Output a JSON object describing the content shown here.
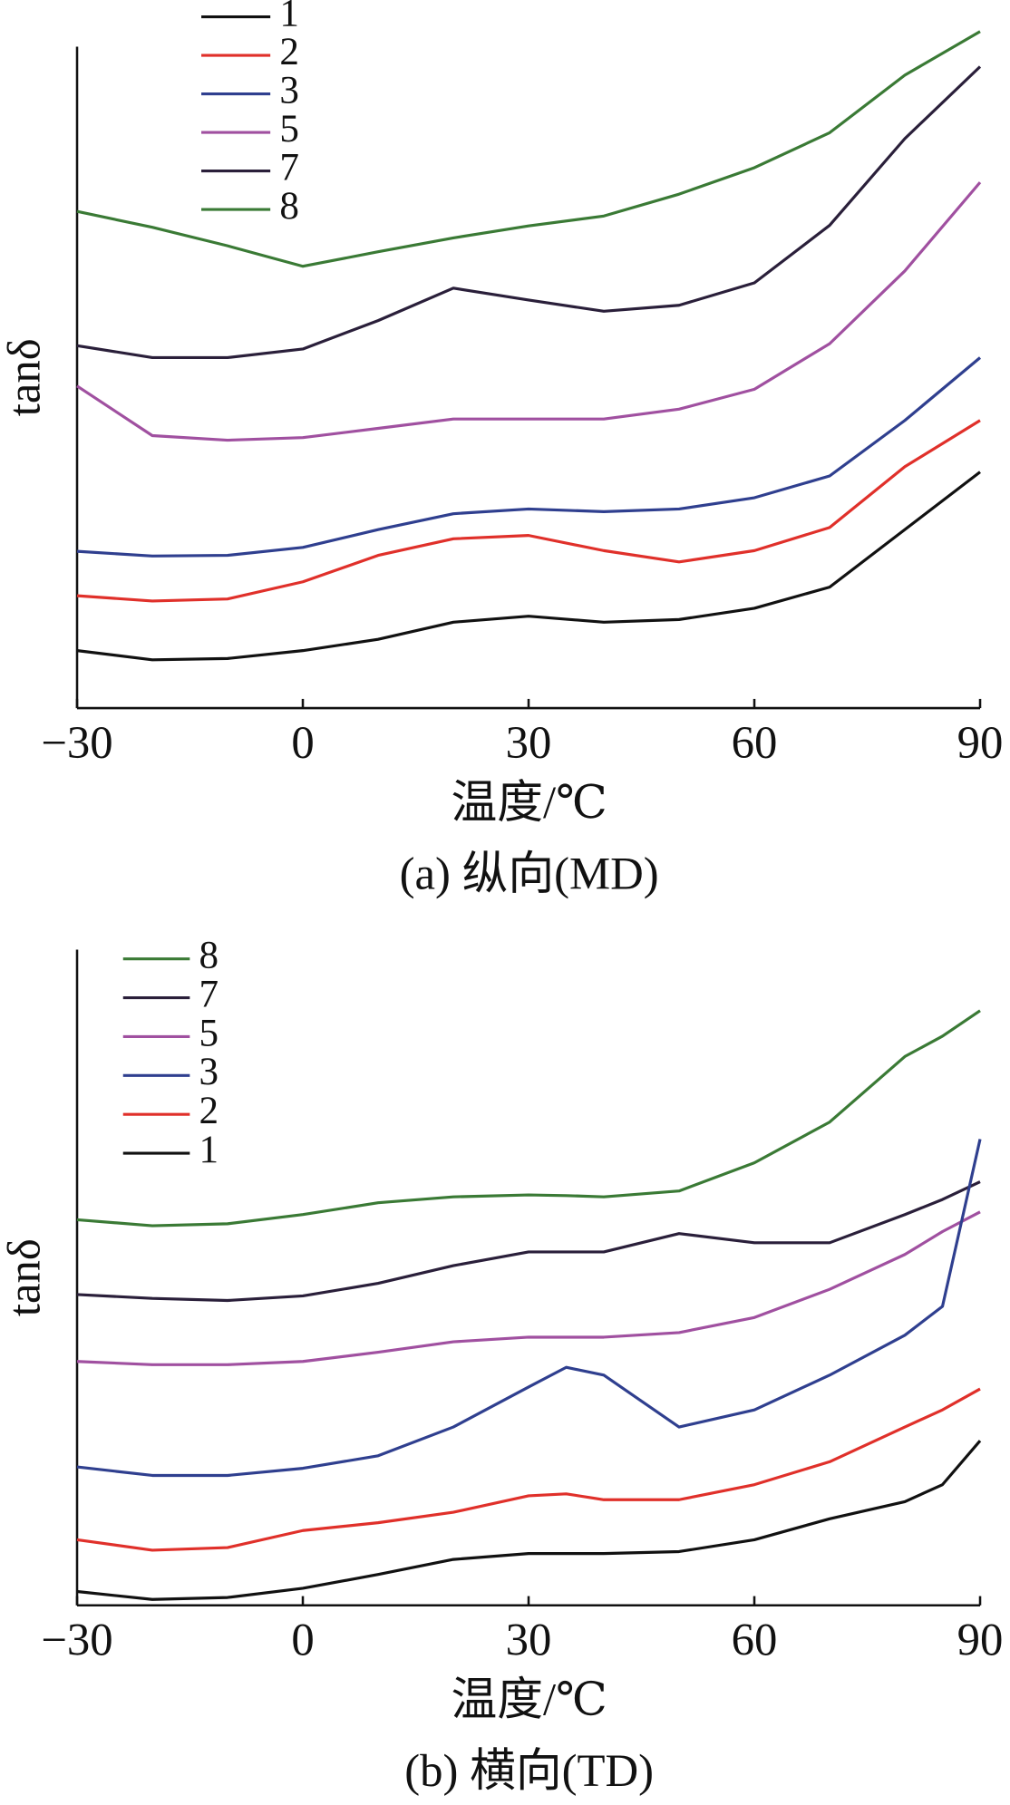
{
  "chart_data": [
    {
      "type": "line",
      "xlabel": "温度/℃",
      "ylabel": "tanδ",
      "caption": "(a) 纵向(MD)",
      "x": [
        -30,
        -20,
        -10,
        0,
        10,
        20,
        30,
        40,
        50,
        60,
        70,
        80,
        90
      ],
      "xlim": [
        -30,
        90
      ],
      "ylim": [
        0,
        100
      ],
      "xticks": [
        {
          "value": -30,
          "label": "−30"
        },
        0,
        30,
        60,
        90
      ],
      "legend": "upper left",
      "series": [
        {
          "name": "1",
          "color": "#111111",
          "values": [
            8.7,
            7.3,
            7.5,
            8.7,
            10.4,
            13.0,
            13.9,
            13.0,
            13.4,
            15.1,
            18.3,
            27.0,
            35.7
          ]
        },
        {
          "name": "2",
          "color": "#e0302a",
          "values": [
            17.0,
            16.2,
            16.5,
            19.1,
            23.1,
            25.6,
            26.1,
            23.8,
            22.1,
            23.8,
            27.3,
            36.5,
            43.5
          ]
        },
        {
          "name": "3",
          "color": "#2f3f8f",
          "values": [
            23.7,
            23.0,
            23.1,
            24.3,
            27.0,
            29.4,
            30.1,
            29.7,
            30.1,
            31.8,
            35.1,
            43.5,
            53.0
          ]
        },
        {
          "name": "5",
          "color": "#a050a0",
          "values": [
            48.7,
            41.2,
            40.5,
            40.9,
            42.3,
            43.7,
            43.7,
            43.7,
            45.2,
            48.2,
            55.1,
            66.1,
            79.5
          ]
        },
        {
          "name": "7",
          "color": "#2a1f3a",
          "values": [
            54.8,
            53.0,
            53.0,
            54.3,
            58.6,
            63.5,
            61.7,
            60.0,
            60.9,
            64.3,
            73.0,
            86.1,
            97.0
          ]
        },
        {
          "name": "8",
          "color": "#3a7a35",
          "values": [
            75.1,
            72.7,
            69.9,
            66.8,
            69.0,
            71.1,
            72.9,
            74.4,
            77.7,
            81.7,
            87.0,
            95.7,
            102.3
          ]
        }
      ]
    },
    {
      "type": "line",
      "xlabel": "温度/℃",
      "ylabel": "tanδ",
      "caption": "(b) 横向(TD)",
      "x": [
        -30,
        -20,
        -10,
        0,
        10,
        20,
        30,
        35,
        40,
        50,
        60,
        70,
        80,
        85,
        90
      ],
      "xlim": [
        -30,
        90
      ],
      "ylim": [
        0,
        100
      ],
      "xticks": [
        {
          "value": -30,
          "label": "−30"
        },
        0,
        30,
        60,
        90
      ],
      "legend": "upper left",
      "series": [
        {
          "name": "8",
          "color": "#3a7a35",
          "values": [
            58.8,
            57.9,
            58.2,
            59.6,
            61.4,
            62.3,
            62.6,
            62.5,
            62.3,
            63.2,
            67.5,
            73.7,
            83.7,
            86.8,
            90.7
          ]
        },
        {
          "name": "7",
          "color": "#2a1f3a",
          "values": [
            47.4,
            46.8,
            46.5,
            47.2,
            49.1,
            51.8,
            53.9,
            53.9,
            53.9,
            56.7,
            55.3,
            55.3,
            59.6,
            61.9,
            64.6
          ]
        },
        {
          "name": "5",
          "color": "#a050a0",
          "values": [
            37.2,
            36.7,
            36.7,
            37.2,
            38.6,
            40.2,
            40.9,
            40.9,
            40.9,
            41.6,
            43.9,
            48.2,
            53.5,
            57.0,
            60.0
          ]
        },
        {
          "name": "3",
          "color": "#2f3f8f",
          "values": [
            21.1,
            19.8,
            19.8,
            20.9,
            22.8,
            27.2,
            33.3,
            36.3,
            35.1,
            27.2,
            29.8,
            35.1,
            41.2,
            45.6,
            71.1
          ]
        },
        {
          "name": "2",
          "color": "#e0302a",
          "values": [
            10.0,
            8.4,
            8.8,
            11.4,
            12.6,
            14.2,
            16.7,
            17.0,
            16.1,
            16.1,
            18.4,
            21.9,
            27.2,
            29.8,
            33.0
          ]
        },
        {
          "name": "1",
          "color": "#111111",
          "values": [
            2.1,
            0.9,
            1.2,
            2.6,
            4.7,
            7.0,
            7.9,
            7.9,
            7.9,
            8.2,
            10.0,
            13.2,
            15.8,
            18.4,
            25.1
          ]
        }
      ]
    }
  ]
}
